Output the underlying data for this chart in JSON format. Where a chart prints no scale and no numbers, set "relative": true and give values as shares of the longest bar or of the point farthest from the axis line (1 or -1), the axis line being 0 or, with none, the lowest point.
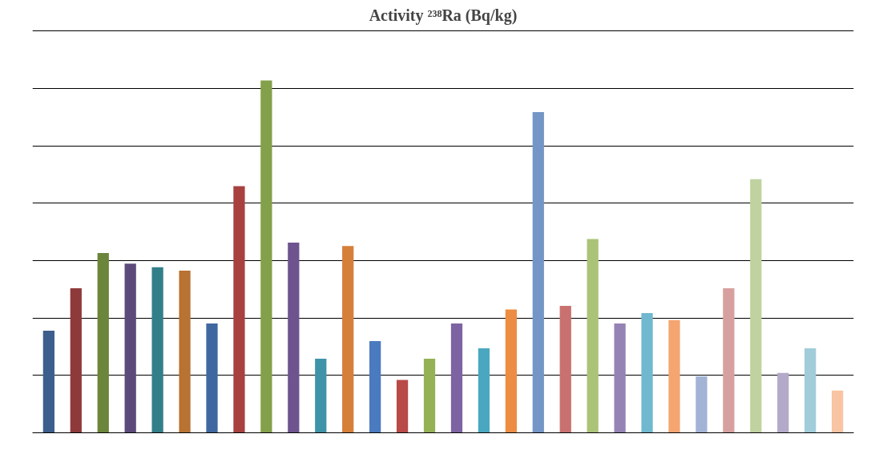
{
  "chart_data": {
    "type": "bar",
    "title": "Activity ²³⁸Ra (Bq/kg)",
    "relative": true,
    "grid": "y",
    "categories": [
      null,
      null,
      null,
      null,
      null,
      null,
      null,
      null,
      null,
      null,
      null,
      null,
      null,
      null,
      null,
      null,
      null,
      null,
      null,
      null,
      null,
      null,
      null,
      null,
      null,
      null,
      null,
      null,
      null,
      null
    ],
    "values": [
      0.29,
      0.41,
      0.51,
      0.48,
      0.47,
      0.46,
      0.31,
      0.7,
      1.0,
      0.54,
      0.21,
      0.53,
      0.26,
      0.15,
      0.21,
      0.31,
      0.24,
      0.35,
      0.91,
      0.36,
      0.55,
      0.31,
      0.34,
      0.32,
      0.16,
      0.41,
      0.72,
      0.17,
      0.24,
      0.12
    ],
    "colors": [
      "#3b5e8c",
      "#8e3a3a",
      "#6b853a",
      "#5c4a7a",
      "#327f8a",
      "#b87232",
      "#4068a0",
      "#a84040",
      "#83a04a",
      "#6e548e",
      "#3f93a8",
      "#d67f38",
      "#4a7abf",
      "#b84a48",
      "#95b155",
      "#7d63a3",
      "#4aa7c0",
      "#ec8d43",
      "#7496c7",
      "#c97170",
      "#abc377",
      "#9683b5",
      "#70b8cf",
      "#f5a56f",
      "#a2b3d6",
      "#d7a09f",
      "#c0d29f",
      "#b3a9c8",
      "#a1ccd9",
      "#f8c4a2"
    ]
  }
}
